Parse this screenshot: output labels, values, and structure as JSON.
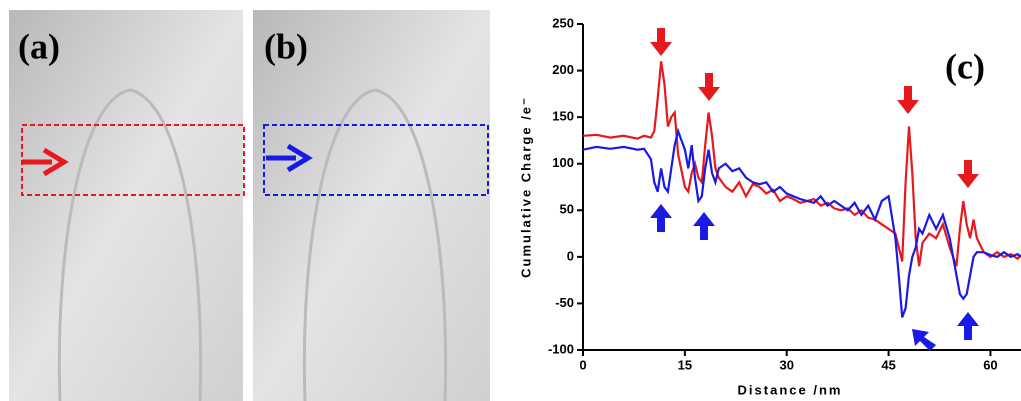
{
  "panels": {
    "a": "(a)",
    "b": "(b)"
  },
  "chart_data": {
    "type": "line",
    "label": "(c)",
    "x_label": "Distance /nm",
    "y_label": "Cumulative Charge /e⁻",
    "x": [
      0,
      2,
      4,
      6,
      8,
      9,
      10,
      10.5,
      11,
      11.5,
      12,
      12.5,
      13,
      13.5,
      14,
      15,
      15.5,
      16,
      16.5,
      17,
      17.5,
      18,
      18.5,
      19,
      19.5,
      20,
      21,
      22,
      23,
      24,
      25,
      26,
      27,
      28,
      29,
      30,
      31,
      32,
      33,
      34,
      35,
      36,
      37,
      38,
      39,
      40,
      41,
      42,
      43,
      44,
      45,
      46,
      46.5,
      47,
      47.5,
      48,
      48.5,
      49,
      49.5,
      50,
      51,
      52,
      53,
      54,
      55,
      55.5,
      56,
      56.5,
      57,
      57.5,
      58,
      59,
      60,
      61,
      62,
      63,
      64,
      64.5
    ],
    "series": [
      {
        "color": "#e8191c",
        "values": [
          130,
          131,
          128,
          130,
          127,
          130,
          128,
          135,
          170,
          210,
          185,
          140,
          150,
          155,
          110,
          75,
          70,
          90,
          100,
          85,
          80,
          120,
          155,
          130,
          95,
          85,
          75,
          70,
          80,
          65,
          78,
          75,
          68,
          72,
          60,
          65,
          62,
          58,
          60,
          62,
          55,
          58,
          52,
          50,
          52,
          45,
          50,
          42,
          40,
          35,
          30,
          25,
          10,
          -5,
          80,
          140,
          90,
          20,
          -10,
          15,
          25,
          20,
          35,
          10,
          -10,
          30,
          60,
          35,
          20,
          40,
          20,
          5,
          0,
          5,
          0,
          3,
          -2,
          2
        ]
      },
      {
        "color": "#1a1ae6",
        "values": [
          115,
          118,
          116,
          118,
          115,
          116,
          105,
          80,
          70,
          95,
          75,
          70,
          95,
          120,
          135,
          115,
          95,
          120,
          85,
          60,
          65,
          95,
          115,
          90,
          80,
          95,
          100,
          92,
          95,
          85,
          80,
          78,
          80,
          70,
          75,
          68,
          65,
          62,
          60,
          58,
          65,
          55,
          60,
          55,
          50,
          58,
          45,
          55,
          40,
          60,
          65,
          20,
          -20,
          -65,
          -55,
          -20,
          0,
          10,
          30,
          25,
          45,
          30,
          45,
          20,
          -20,
          -40,
          -45,
          -40,
          -20,
          0,
          5,
          5,
          2,
          0,
          5,
          0,
          3,
          0
        ]
      }
    ],
    "xlim": [
      0,
      64.5
    ],
    "ylim": [
      -100,
      250
    ],
    "xticks": [
      0,
      15,
      30,
      45,
      60
    ],
    "yticks": [
      -100,
      -50,
      0,
      50,
      100,
      150,
      200,
      250
    ]
  }
}
